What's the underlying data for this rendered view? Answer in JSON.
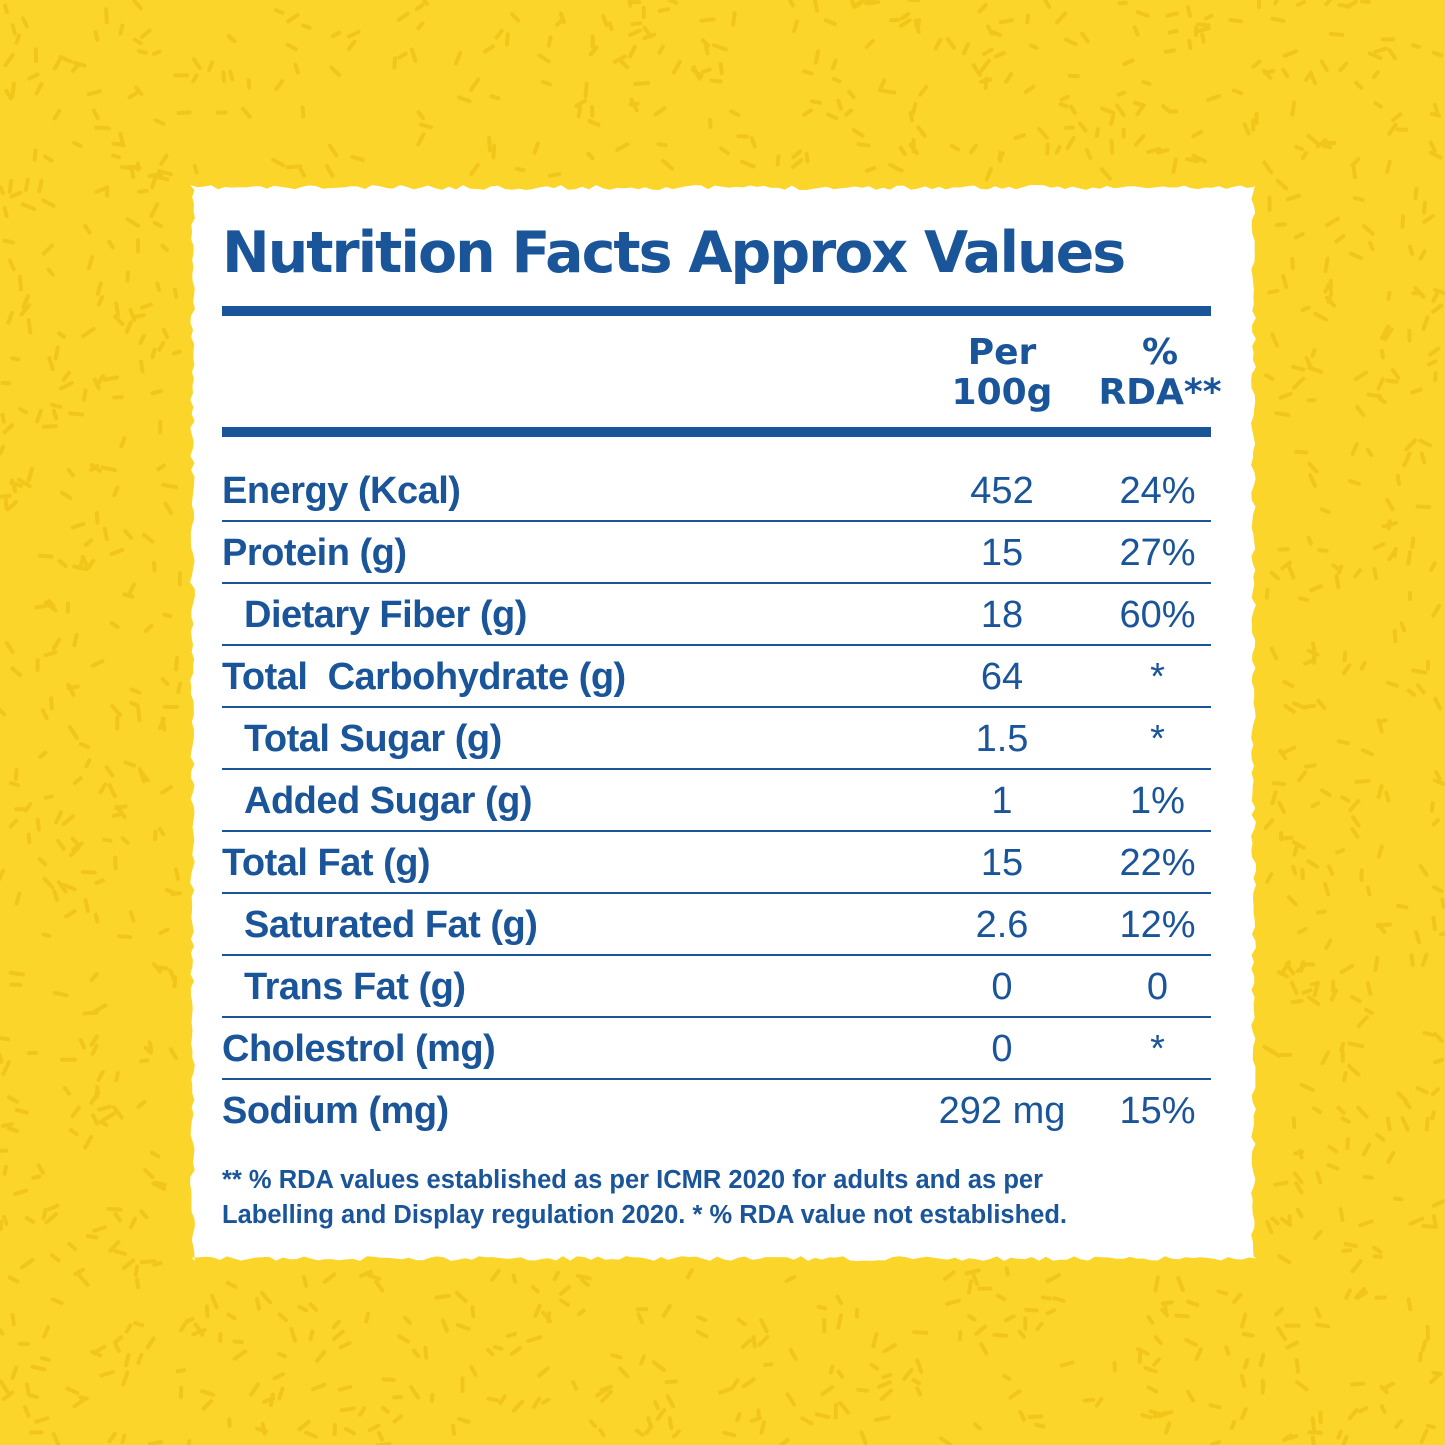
{
  "colors": {
    "background": "#fbd52a",
    "pattern": "#f2c51b",
    "card": "#ffffff",
    "text": "#1a5499"
  },
  "panel": {
    "title": "Nutrition Facts Approx Values",
    "columns": {
      "per100_line1": "Per",
      "per100_line2": "100g",
      "rda_line1": "%",
      "rda_line2": "RDA**"
    },
    "rows": [
      {
        "label": "Energy (Kcal)",
        "value": "452",
        "rda": "24%",
        "indent": false
      },
      {
        "label": "Protein (g)",
        "value": "15",
        "rda": "27%",
        "indent": false
      },
      {
        "label": "Dietary Fiber (g)",
        "value": "18",
        "rda": "60%",
        "indent": true
      },
      {
        "label": "Total  Carbohydrate (g)",
        "value": "64",
        "rda": "*",
        "indent": false
      },
      {
        "label": "Total Sugar (g)",
        "value": "1.5",
        "rda": "*",
        "indent": true
      },
      {
        "label": "Added Sugar (g)",
        "value": "1",
        "rda": "1%",
        "indent": true
      },
      {
        "label": "Total Fat (g)",
        "value": "15",
        "rda": "22%",
        "indent": false
      },
      {
        "label": "Saturated Fat (g)",
        "value": "2.6",
        "rda": "12%",
        "indent": true
      },
      {
        "label": "Trans Fat (g)",
        "value": "0",
        "rda": "0",
        "indent": true
      },
      {
        "label": "Cholestrol (mg)",
        "value": "0",
        "rda": "*",
        "indent": false
      },
      {
        "label": "Sodium (mg)",
        "value": "292 mg",
        "rda": "15%",
        "indent": false
      }
    ],
    "footnote_line1": "** % RDA values established as per ICMR 2020 for adults and as per",
    "footnote_line2": "Labelling and Display regulation 2020. * % RDA value not established."
  }
}
